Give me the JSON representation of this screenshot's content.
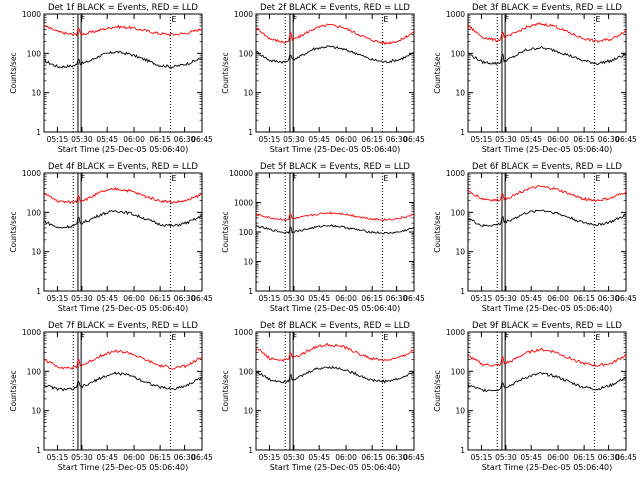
{
  "chart_data": [
    {
      "type": "line",
      "title": "Det 1f BLACK = Events, RED = LLD",
      "ylabel": "Counts/sec",
      "xlabel": "Start Time (25-Dec-05 05:06:40)",
      "ylim": [
        1,
        1000
      ],
      "yscale": "log",
      "x_ticks": [
        "05:15",
        "05:30",
        "05:45",
        "06:00",
        "06:15",
        "06:30",
        "06:45"
      ],
      "y_ticks": [
        "1",
        "10",
        "100",
        "1000"
      ],
      "markers": [
        "F",
        "E"
      ],
      "series": [
        {
          "name": "Events",
          "color": "#000000",
          "values": [
            65,
            45,
            48,
            60,
            90,
            110,
            95,
            70,
            50,
            45,
            55,
            75
          ]
        },
        {
          "name": "LLD",
          "color": "#ff0000",
          "values": [
            500,
            350,
            300,
            320,
            400,
            480,
            450,
            380,
            320,
            300,
            330,
            420
          ]
        }
      ]
    },
    {
      "type": "line",
      "title": "Det 2f BLACK = Events, RED = LLD",
      "ylabel": "Counts/sec",
      "xlabel": "Start Time (25-Dec-05 05:06:40)",
      "ylim": [
        1,
        1000
      ],
      "yscale": "log",
      "x_ticks": [
        "05:15",
        "05:30",
        "05:45",
        "06:00",
        "06:15",
        "06:30",
        "06:45"
      ],
      "y_ticks": [
        "1",
        "10",
        "100",
        "1000"
      ],
      "markers": [
        "F",
        "E"
      ],
      "series": [
        {
          "name": "Events",
          "color": "#000000",
          "values": [
            110,
            65,
            60,
            80,
            130,
            150,
            130,
            100,
            70,
            60,
            70,
            100
          ]
        },
        {
          "name": "LLD",
          "color": "#ff0000",
          "values": [
            450,
            230,
            190,
            260,
            420,
            530,
            470,
            320,
            220,
            180,
            210,
            350
          ]
        }
      ]
    },
    {
      "type": "line",
      "title": "Det 3f BLACK = Events, RED = LLD",
      "ylabel": "Counts/sec",
      "xlabel": "Start Time (25-Dec-05 05:06:40)",
      "ylim": [
        1,
        1000
      ],
      "yscale": "log",
      "x_ticks": [
        "05:15",
        "05:30",
        "05:45",
        "06:00",
        "06:15",
        "06:30",
        "06:45"
      ],
      "y_ticks": [
        "1",
        "10",
        "100",
        "1000"
      ],
      "markers": [
        "F",
        "E"
      ],
      "series": [
        {
          "name": "Events",
          "color": "#000000",
          "values": [
            100,
            60,
            55,
            75,
            120,
            140,
            120,
            90,
            65,
            55,
            65,
            95
          ]
        },
        {
          "name": "LLD",
          "color": "#ff0000",
          "values": [
            500,
            260,
            210,
            290,
            450,
            560,
            500,
            340,
            240,
            200,
            230,
            380
          ]
        }
      ]
    },
    {
      "type": "line",
      "title": "Det 4f BLACK = Events, RED = LLD",
      "ylabel": "Counts/sec",
      "xlabel": "Start Time (25-Dec-05 05:06:40)",
      "ylim": [
        1,
        1000
      ],
      "yscale": "log",
      "x_ticks": [
        "05:15",
        "05:30",
        "05:45",
        "06:00",
        "06:15",
        "06:30",
        "06:45"
      ],
      "y_ticks": [
        "1",
        "10",
        "100",
        "1000"
      ],
      "markers": [
        "F",
        "E"
      ],
      "series": [
        {
          "name": "Events",
          "color": "#000000",
          "values": [
            60,
            40,
            45,
            60,
            90,
            110,
            95,
            70,
            50,
            45,
            55,
            80
          ]
        },
        {
          "name": "LLD",
          "color": "#ff0000",
          "values": [
            300,
            190,
            180,
            220,
            330,
            400,
            350,
            260,
            200,
            180,
            200,
            290
          ]
        }
      ]
    },
    {
      "type": "line",
      "title": "Det 5f BLACK = Events, RED = LLD",
      "ylabel": "Counts/sec",
      "xlabel": "Start Time (25-Dec-05 05:06:40)",
      "ylim": [
        1,
        10000
      ],
      "yscale": "log",
      "x_ticks": [
        "05:15",
        "05:30",
        "05:45",
        "06:00",
        "06:15",
        "06:30",
        "06:45"
      ],
      "y_ticks": [
        "1",
        "10",
        "100",
        "1000",
        "10000"
      ],
      "markers": [
        "F",
        "E"
      ],
      "series": [
        {
          "name": "Events",
          "color": "#000000",
          "values": [
            160,
            120,
            95,
            110,
            140,
            170,
            150,
            120,
            100,
            90,
            100,
            140
          ]
        },
        {
          "name": "LLD",
          "color": "#ff0000",
          "values": [
            400,
            300,
            260,
            300,
            380,
            450,
            420,
            340,
            280,
            260,
            290,
            380
          ]
        }
      ]
    },
    {
      "type": "line",
      "title": "Det 6f BLACK = Events, RED = LLD",
      "ylabel": "Counts/sec",
      "xlabel": "Start Time (25-Dec-05 05:06:40)",
      "ylim": [
        1,
        1000
      ],
      "yscale": "log",
      "x_ticks": [
        "05:15",
        "05:30",
        "05:45",
        "06:00",
        "06:15",
        "06:30",
        "06:45"
      ],
      "y_ticks": [
        "1",
        "10",
        "100",
        "1000"
      ],
      "markers": [
        "F",
        "E"
      ],
      "series": [
        {
          "name": "Events",
          "color": "#000000",
          "values": [
            70,
            45,
            48,
            65,
            95,
            115,
            100,
            75,
            55,
            48,
            58,
            85
          ]
        },
        {
          "name": "LLD",
          "color": "#ff0000",
          "values": [
            350,
            220,
            200,
            250,
            380,
            450,
            400,
            300,
            220,
            200,
            230,
            330
          ]
        }
      ]
    },
    {
      "type": "line",
      "title": "Det 7f BLACK = Events, RED = LLD",
      "ylabel": "Counts/sec",
      "xlabel": "Start Time (25-Dec-05 05:06:40)",
      "ylim": [
        1,
        1000
      ],
      "yscale": "log",
      "x_ticks": [
        "05:15",
        "05:30",
        "05:45",
        "06:00",
        "06:15",
        "06:30",
        "06:45"
      ],
      "y_ticks": [
        "1",
        "10",
        "100",
        "1000"
      ],
      "markers": [
        "F",
        "E"
      ],
      "series": [
        {
          "name": "Events",
          "color": "#000000",
          "values": [
            45,
            35,
            35,
            45,
            70,
            90,
            80,
            55,
            40,
            35,
            45,
            70
          ]
        },
        {
          "name": "LLD",
          "color": "#ff0000",
          "values": [
            200,
            130,
            120,
            160,
            260,
            330,
            290,
            200,
            140,
            120,
            140,
            230
          ]
        }
      ]
    },
    {
      "type": "line",
      "title": "Det 8f BLACK = Events, RED = LLD",
      "ylabel": "Counts/sec",
      "xlabel": "Start Time (25-Dec-05 05:06:40)",
      "ylim": [
        1,
        1000
      ],
      "yscale": "log",
      "x_ticks": [
        "05:15",
        "05:30",
        "05:45",
        "06:00",
        "06:15",
        "06:30",
        "06:45"
      ],
      "y_ticks": [
        "1",
        "10",
        "100",
        "1000"
      ],
      "markers": [
        "F",
        "E"
      ],
      "series": [
        {
          "name": "Events",
          "color": "#000000",
          "values": [
            100,
            60,
            55,
            70,
            110,
            130,
            115,
            85,
            60,
            55,
            65,
            95
          ]
        },
        {
          "name": "LLD",
          "color": "#ff0000",
          "values": [
            400,
            210,
            190,
            250,
            400,
            480,
            430,
            300,
            210,
            190,
            220,
            350
          ]
        }
      ]
    },
    {
      "type": "line",
      "title": "Det 9f BLACK = Events, RED = LLD",
      "ylabel": "Counts/sec",
      "xlabel": "Start Time (25-Dec-05 05:06:40)",
      "ylim": [
        1,
        1000
      ],
      "yscale": "log",
      "x_ticks": [
        "05:15",
        "05:30",
        "05:45",
        "06:00",
        "06:15",
        "06:30",
        "06:45"
      ],
      "y_ticks": [
        "1",
        "10",
        "100",
        "1000"
      ],
      "markers": [
        "F",
        "E"
      ],
      "series": [
        {
          "name": "Events",
          "color": "#000000",
          "values": [
            45,
            33,
            34,
            45,
            70,
            88,
            78,
            55,
            40,
            35,
            45,
            70
          ]
        },
        {
          "name": "LLD",
          "color": "#ff0000",
          "values": [
            250,
            150,
            140,
            180,
            290,
            360,
            320,
            220,
            160,
            140,
            160,
            260
          ]
        }
      ]
    }
  ]
}
